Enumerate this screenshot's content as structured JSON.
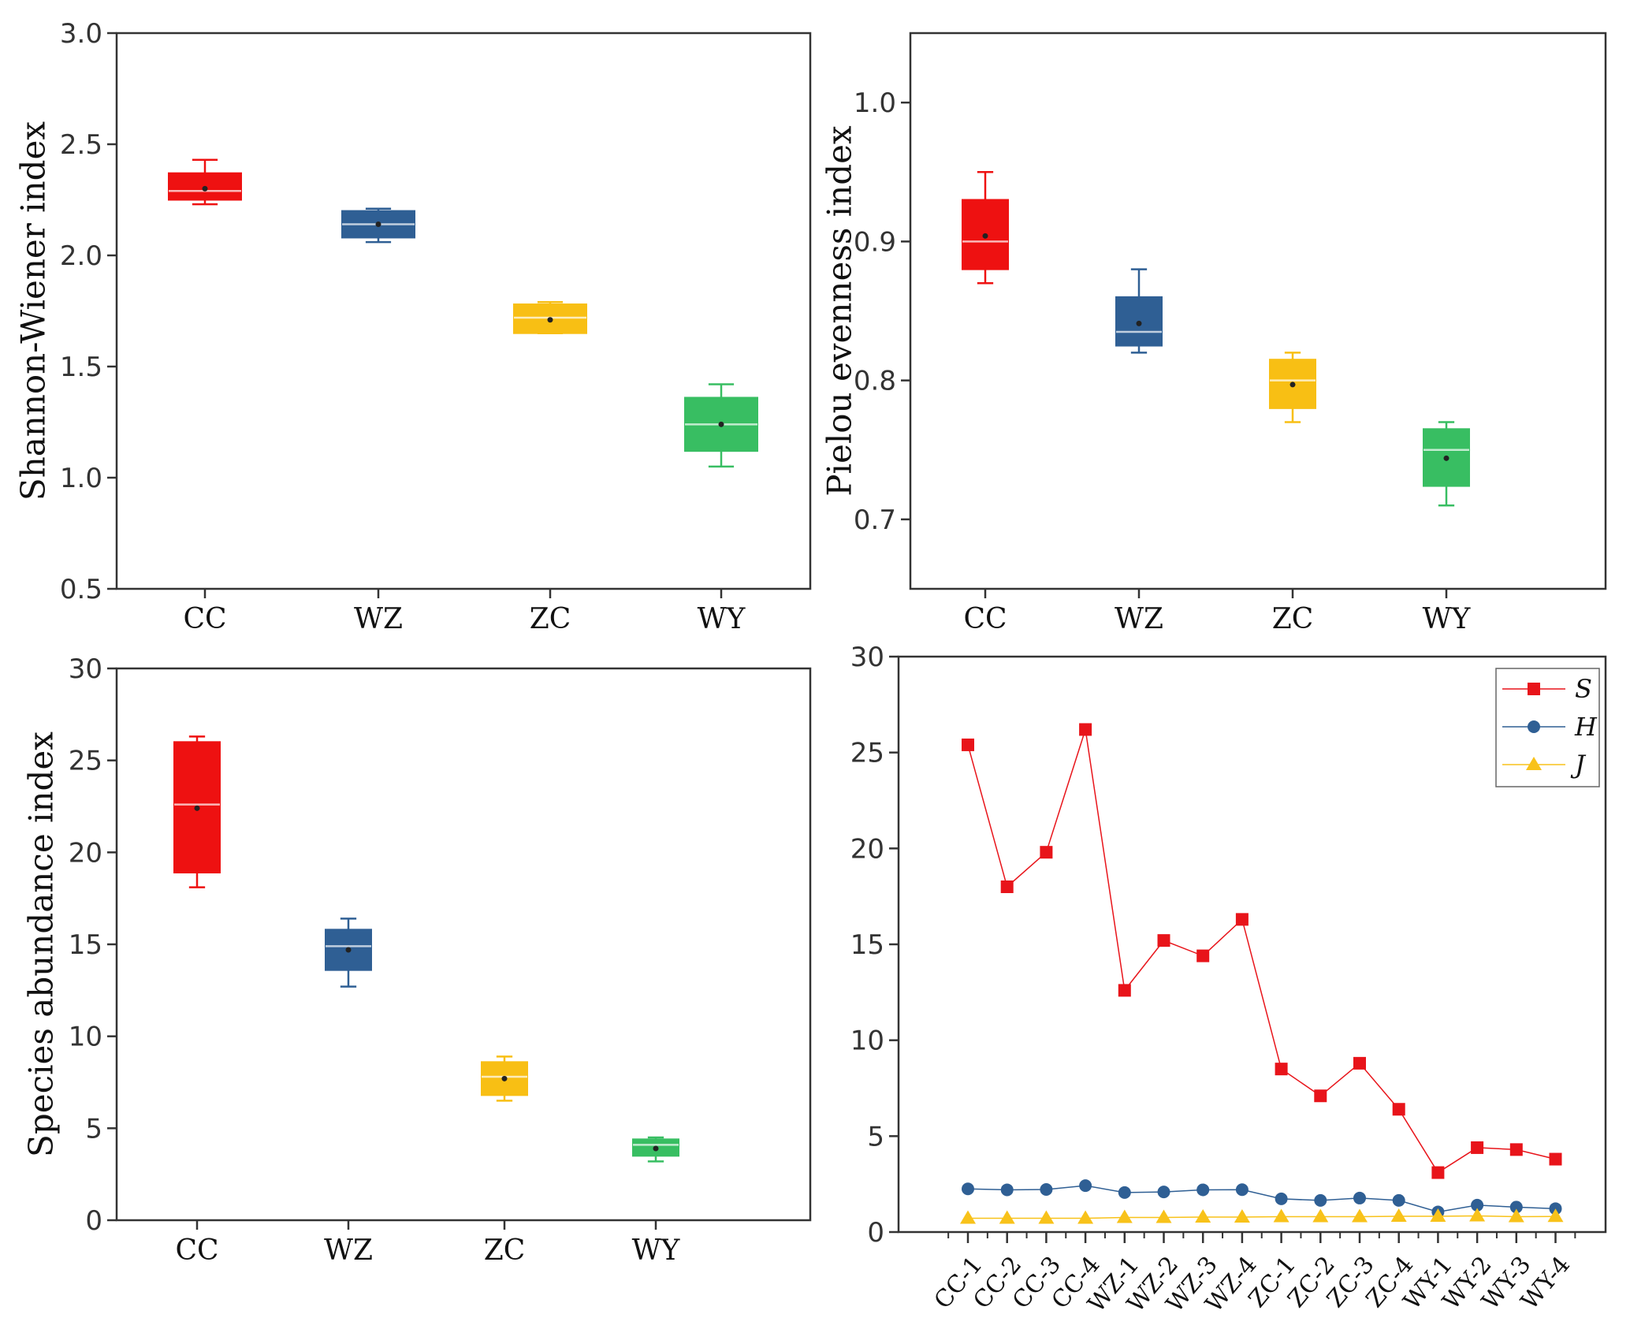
{
  "colors": {
    "CC": "#ee1111",
    "WZ": "#2f5f94",
    "ZC": "#f8bf14",
    "WY": "#38be62",
    "S": "#e8141a",
    "H": "#2f5f94",
    "J": "#f8c21a",
    "axis": "#333333"
  },
  "chart_data": [
    {
      "type": "box",
      "id": "shannon",
      "ylabel": "Shannon-Wiener index",
      "xlabel": "",
      "ylim": [
        0.5,
        3.0
      ],
      "yticks": [
        0.5,
        1.0,
        1.5,
        2.0,
        2.5,
        3.0
      ],
      "ytick_labels": [
        "0.5",
        "1.0",
        "1.5",
        "2.0",
        "2.5",
        "3.0"
      ],
      "categories": [
        "CC",
        "WZ",
        "ZC",
        "WY"
      ],
      "boxes": [
        {
          "category": "CC",
          "min": 2.23,
          "q1": 2.25,
          "median": 2.29,
          "q3": 2.37,
          "max": 2.43,
          "mean": 2.3
        },
        {
          "category": "WZ",
          "min": 2.06,
          "q1": 2.08,
          "median": 2.14,
          "q3": 2.2,
          "max": 2.21,
          "mean": 2.14
        },
        {
          "category": "ZC",
          "min": 1.65,
          "q1": 1.65,
          "median": 1.72,
          "q3": 1.78,
          "max": 1.79,
          "mean": 1.71
        },
        {
          "category": "WY",
          "min": 1.05,
          "q1": 1.12,
          "median": 1.24,
          "q3": 1.36,
          "max": 1.42,
          "mean": 1.24
        }
      ]
    },
    {
      "type": "box",
      "id": "pielou",
      "ylabel": "Pielou evenness index",
      "xlabel": "",
      "ylim": [
        0.65,
        1.05
      ],
      "yticks": [
        0.7,
        0.8,
        0.9,
        1.0
      ],
      "ytick_labels": [
        "0.7",
        "0.8",
        "0.9",
        "1.0"
      ],
      "categories": [
        "CC",
        "WZ",
        "ZC",
        "WY"
      ],
      "boxes": [
        {
          "category": "CC",
          "min": 0.87,
          "q1": 0.88,
          "median": 0.9,
          "q3": 0.93,
          "max": 0.95,
          "mean": 0.904
        },
        {
          "category": "WZ",
          "min": 0.82,
          "q1": 0.825,
          "median": 0.835,
          "q3": 0.86,
          "max": 0.88,
          "mean": 0.841
        },
        {
          "category": "ZC",
          "min": 0.77,
          "q1": 0.78,
          "median": 0.8,
          "q3": 0.815,
          "max": 0.82,
          "mean": 0.797
        },
        {
          "category": "WY",
          "min": 0.71,
          "q1": 0.724,
          "median": 0.75,
          "q3": 0.765,
          "max": 0.77,
          "mean": 0.744
        }
      ]
    },
    {
      "type": "box",
      "id": "species",
      "ylabel": "Species abundance index",
      "xlabel": "",
      "ylim": [
        0,
        30
      ],
      "yticks": [
        0,
        5,
        10,
        15,
        20,
        25,
        30
      ],
      "ytick_labels": [
        "0",
        "5",
        "10",
        "15",
        "20",
        "25",
        "30"
      ],
      "categories": [
        "CC",
        "WZ",
        "ZC",
        "WY"
      ],
      "boxes": [
        {
          "category": "CC",
          "min": 18.1,
          "q1": 18.9,
          "median": 22.6,
          "q3": 26.0,
          "max": 26.3,
          "mean": 22.4
        },
        {
          "category": "WZ",
          "min": 12.7,
          "q1": 13.6,
          "median": 14.9,
          "q3": 15.8,
          "max": 16.4,
          "mean": 14.7
        },
        {
          "category": "ZC",
          "min": 6.5,
          "q1": 6.8,
          "median": 7.8,
          "q3": 8.6,
          "max": 8.9,
          "mean": 7.7
        },
        {
          "category": "WY",
          "min": 3.2,
          "q1": 3.5,
          "median": 4.1,
          "q3": 4.4,
          "max": 4.5,
          "mean": 3.9
        }
      ]
    },
    {
      "type": "line",
      "id": "samples",
      "ylabel": "",
      "xlabel": "",
      "ylim": [
        0,
        30
      ],
      "yticks": [
        0,
        5,
        10,
        15,
        20,
        25,
        30
      ],
      "ytick_labels": [
        "0",
        "5",
        "10",
        "15",
        "20",
        "25",
        "30"
      ],
      "categories": [
        "CC-1",
        "CC-2",
        "CC-3",
        "CC-4",
        "WZ-1",
        "WZ-2",
        "WZ-3",
        "WZ-4",
        "ZC-1",
        "ZC-2",
        "ZC-3",
        "ZC-4",
        "WY-1",
        "WY-2",
        "WY-3",
        "WY-4"
      ],
      "legend_position": "top-right",
      "series": [
        {
          "name": "S",
          "marker": "square",
          "values": [
            25.4,
            18.0,
            19.8,
            26.2,
            12.6,
            15.2,
            14.4,
            16.3,
            8.5,
            7.1,
            8.8,
            6.4,
            3.1,
            4.4,
            4.3,
            3.8
          ]
        },
        {
          "name": "H",
          "marker": "circle",
          "values": [
            2.25,
            2.2,
            2.22,
            2.42,
            2.06,
            2.09,
            2.2,
            2.21,
            1.73,
            1.65,
            1.77,
            1.65,
            1.05,
            1.4,
            1.3,
            1.22
          ]
        },
        {
          "name": "J",
          "marker": "triangle",
          "values": [
            0.72,
            0.72,
            0.72,
            0.72,
            0.76,
            0.76,
            0.78,
            0.78,
            0.8,
            0.8,
            0.8,
            0.82,
            0.82,
            0.84,
            0.8,
            0.81
          ]
        }
      ]
    }
  ]
}
